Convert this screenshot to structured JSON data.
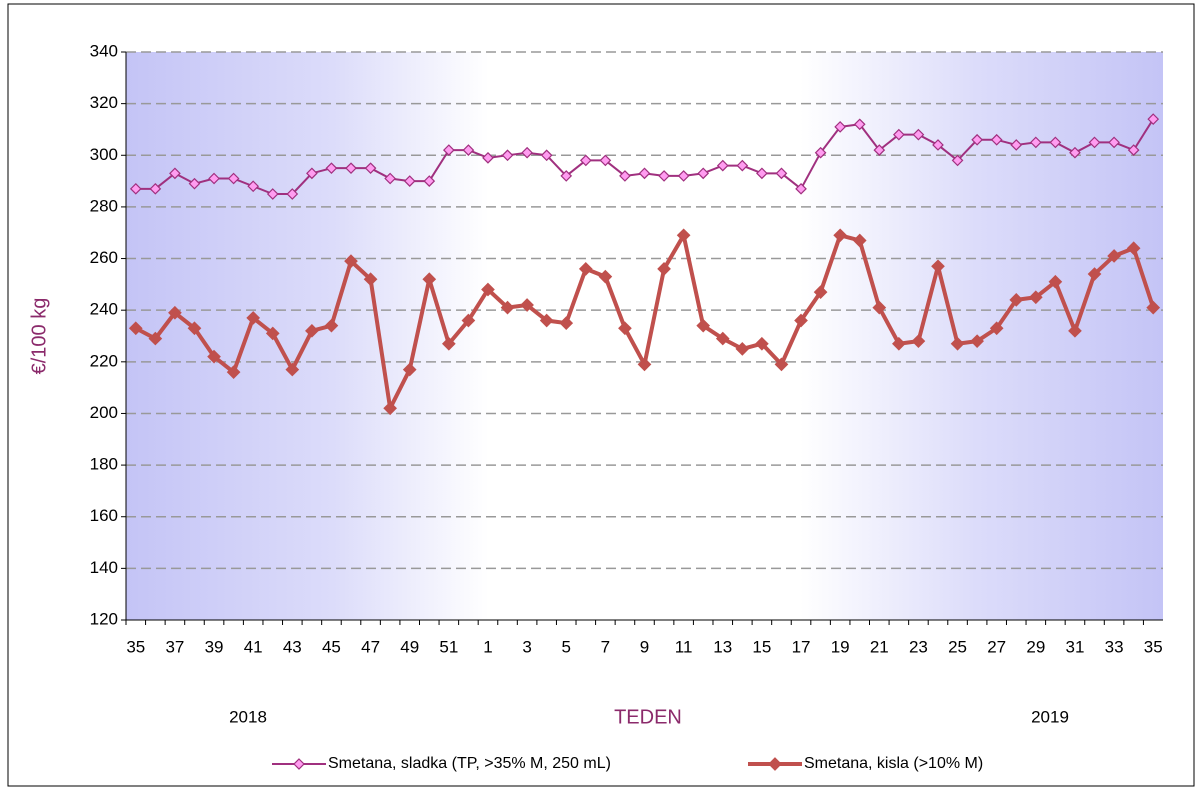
{
  "chart_data": {
    "type": "line",
    "y_label": "€/100 kg",
    "x_label": "TEDEN",
    "annotations": [
      "2018",
      "2019"
    ],
    "categories": [
      "35",
      null,
      "37",
      null,
      "39",
      null,
      "41",
      null,
      "43",
      null,
      "45",
      null,
      "47",
      null,
      "49",
      null,
      "51",
      null,
      "1",
      null,
      "3",
      null,
      "5",
      null,
      "7",
      null,
      "9",
      null,
      "11",
      null,
      "13",
      null,
      "15",
      null,
      "17",
      null,
      "19",
      null,
      "21",
      null,
      "23",
      null,
      "25",
      null,
      "27",
      null,
      "29",
      null,
      "31",
      null,
      "33",
      null,
      "35"
    ],
    "series": [
      {
        "name": "Smetana, sladka (TP, >35% M, 250 mL)",
        "color": "#a0307f",
        "marker_color": "#ff9cf0",
        "values": [
          287,
          287,
          293,
          289,
          291,
          291,
          288,
          285,
          285,
          293,
          295,
          295,
          295,
          291,
          290,
          290,
          302,
          302,
          299,
          300,
          301,
          300,
          292,
          298,
          298,
          292,
          293,
          292,
          292,
          293,
          296,
          296,
          293,
          293,
          287,
          301,
          311,
          312,
          302,
          308,
          308,
          304,
          298,
          306,
          306,
          304,
          305,
          305,
          301,
          305,
          305,
          302,
          314
        ]
      },
      {
        "name": "Smetana, kisla (>10% M)",
        "color": "#c0504d",
        "marker_color": "#c0504d",
        "values": [
          233,
          229,
          239,
          233,
          222,
          216,
          237,
          231,
          217,
          232,
          234,
          259,
          252,
          202,
          217,
          252,
          227,
          236,
          248,
          241,
          242,
          236,
          235,
          256,
          253,
          233,
          219,
          256,
          269,
          234,
          229,
          225,
          227,
          219,
          236,
          247,
          269,
          267,
          241,
          227,
          228,
          257,
          227,
          228,
          233,
          244,
          245,
          251,
          232,
          254,
          261,
          264,
          241
        ]
      }
    ],
    "ylim": [
      120,
      340
    ],
    "yticks": [
      120,
      140,
      160,
      180,
      200,
      220,
      240,
      260,
      280,
      300,
      320,
      340
    ],
    "grid": true
  }
}
